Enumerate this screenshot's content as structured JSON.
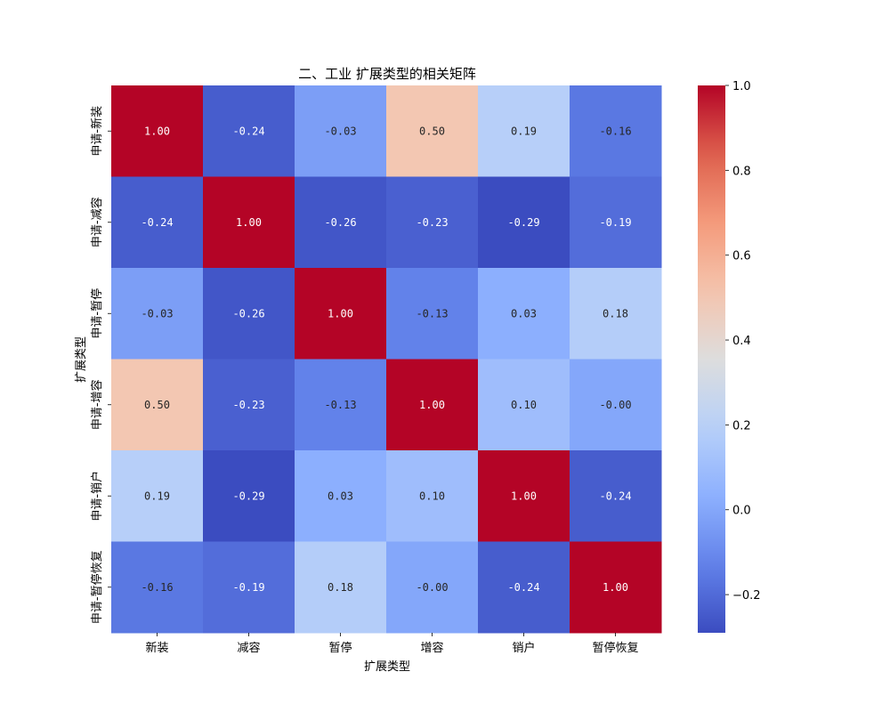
{
  "chart_data": {
    "type": "heatmap",
    "title": "二、工业 扩展类型的相关矩阵",
    "xlabel": "扩展类型",
    "ylabel": "扩展类型",
    "x_categories": [
      "新装",
      "减容",
      "暂停",
      "增容",
      "销户",
      "暂停恢复"
    ],
    "y_categories": [
      "申请-新装",
      "申请-减容",
      "申请-暂停",
      "申请-增容",
      "申请-销户",
      "申请-暂停恢复"
    ],
    "values": [
      [
        1.0,
        -0.24,
        -0.03,
        0.5,
        0.19,
        -0.16
      ],
      [
        -0.24,
        1.0,
        -0.26,
        -0.23,
        -0.29,
        -0.19
      ],
      [
        -0.03,
        -0.26,
        1.0,
        -0.13,
        0.03,
        0.18
      ],
      [
        0.5,
        -0.23,
        -0.13,
        1.0,
        0.1,
        -0.0
      ],
      [
        0.19,
        -0.29,
        0.03,
        0.1,
        1.0,
        -0.24
      ],
      [
        -0.16,
        -0.19,
        0.18,
        -0.0,
        -0.24,
        1.0
      ]
    ],
    "cell_labels": [
      [
        "1.00",
        "-0.24",
        "-0.03",
        "0.50",
        "0.19",
        "-0.16"
      ],
      [
        "-0.24",
        "1.00",
        "-0.26",
        "-0.23",
        "-0.29",
        "-0.19"
      ],
      [
        "-0.03",
        "-0.26",
        "1.00",
        "-0.13",
        "0.03",
        "0.18"
      ],
      [
        "0.50",
        "-0.23",
        "-0.13",
        "1.00",
        "0.10",
        "-0.00"
      ],
      [
        "0.19",
        "-0.29",
        "0.03",
        "0.10",
        "1.00",
        "-0.24"
      ],
      [
        "-0.16",
        "-0.19",
        "0.18",
        "-0.00",
        "-0.24",
        "1.00"
      ]
    ],
    "colormap": "coolwarm",
    "vmin": -0.29,
    "vmax": 1.0,
    "colorbar": {
      "ticks": [
        1.0,
        0.8,
        0.6,
        0.4,
        0.2,
        0.0,
        -0.2
      ],
      "tick_labels": [
        "1.0",
        "0.8",
        "0.6",
        "0.4",
        "0.2",
        "0.0",
        "−0.2"
      ]
    },
    "grid": false
  }
}
